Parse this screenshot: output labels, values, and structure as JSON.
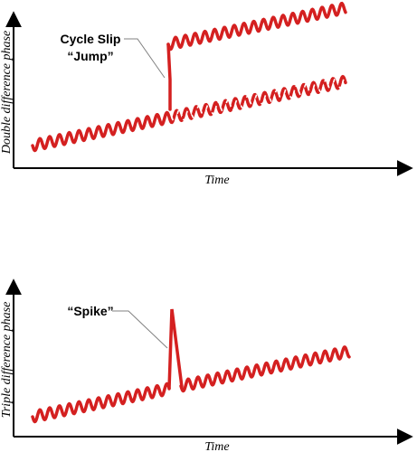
{
  "colors": {
    "signal": "#d42020",
    "axis": "#000000",
    "leader": "#808080",
    "dash": "#ffffff"
  },
  "top_panel": {
    "ylabel": "Double difference phase",
    "xlabel": "Time",
    "annotation_line1": "Cycle Slip",
    "annotation_line2": "“Jump”"
  },
  "bottom_panel": {
    "ylabel": "Triple difference phase",
    "xlabel": "Time",
    "annotation": "“Spike”"
  }
}
